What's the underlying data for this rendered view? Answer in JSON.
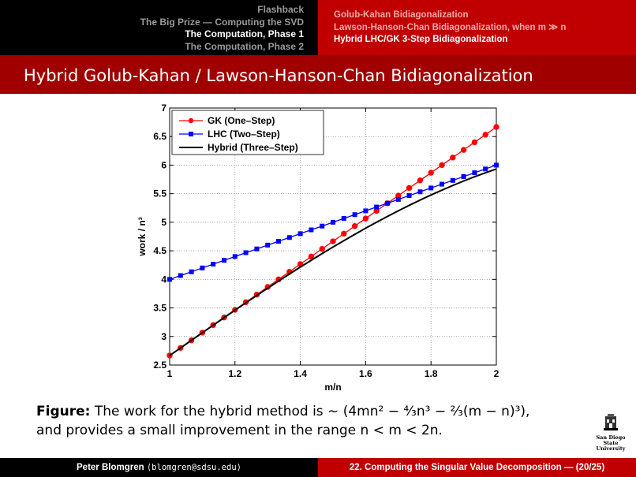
{
  "nav": {
    "sections": [
      {
        "label": "Flashback",
        "active": false
      },
      {
        "label": "The Big Prize — Computing the SVD",
        "active": false
      },
      {
        "label": "The Computation, Phase 1",
        "active": true
      },
      {
        "label": "The Computation, Phase 2",
        "active": false
      }
    ],
    "subsections": [
      {
        "label": "Golub-Kahan Bidiagonalization",
        "active": false
      },
      {
        "label": "Lawson-Hanson-Chan Bidiagonalization, when m ≫ n",
        "active": false
      },
      {
        "label": "Hybrid LHC/GK 3-Step Bidiagonalization",
        "active": true
      }
    ]
  },
  "frame_title": "Hybrid Golub-Kahan / Lawson-Hanson-Chan Bidiagonalization",
  "caption": {
    "label": "Figure:",
    "line1": "The work for the hybrid method is ∼ (4mn² − ⁴⁄₃n³ − ²⁄₃(m − n)³),",
    "line2": "and provides a small improvement in the range n < m < 2n."
  },
  "logo": {
    "line1": "San Diego State",
    "line2": "University"
  },
  "footer": {
    "author": "Peter Blomgren",
    "email": "⟨blomgren@sdsu.edu⟩",
    "slide": "22. Computing the Singular Value Decomposition — (20/25)"
  },
  "colors": {
    "gk": "#ff0000",
    "lhc": "#0000ff",
    "hybrid": "#000000",
    "title_bar": "#a00000",
    "nav_red": "#c00000"
  },
  "chart_data": {
    "type": "line",
    "xlabel": "m/n",
    "ylabel": "work / n³",
    "xlim": [
      1,
      2
    ],
    "ylim": [
      2.5,
      7
    ],
    "xticks": [
      "1",
      "1.2",
      "1.4",
      "1.6",
      "1.8",
      "2"
    ],
    "yticks": [
      "2.5",
      "3",
      "3.5",
      "4",
      "4.5",
      "5",
      "5.5",
      "6",
      "6.5",
      "7"
    ],
    "grid": true,
    "legend_position": "top-left",
    "x": [
      1.0,
      1.0333,
      1.0667,
      1.1,
      1.1333,
      1.1667,
      1.2,
      1.2333,
      1.2667,
      1.3,
      1.3333,
      1.3667,
      1.4,
      1.4333,
      1.4667,
      1.5,
      1.5333,
      1.5667,
      1.6,
      1.6333,
      1.6667,
      1.7,
      1.7333,
      1.7667,
      1.8,
      1.8333,
      1.8667,
      1.9,
      1.9333,
      1.9667,
      2.0
    ],
    "series": [
      {
        "name": "GK (One–Step)",
        "marker": "circle",
        "values": [
          2.667,
          2.8,
          2.933,
          3.067,
          3.2,
          3.333,
          3.467,
          3.6,
          3.733,
          3.867,
          4.0,
          4.133,
          4.267,
          4.4,
          4.533,
          4.667,
          4.8,
          4.933,
          5.067,
          5.2,
          5.333,
          5.467,
          5.6,
          5.733,
          5.867,
          6.0,
          6.133,
          6.267,
          6.4,
          6.533,
          6.667
        ]
      },
      {
        "name": "LHC (Two–Step)",
        "marker": "square",
        "values": [
          4.0,
          4.067,
          4.133,
          4.2,
          4.267,
          4.333,
          4.4,
          4.467,
          4.533,
          4.6,
          4.667,
          4.733,
          4.8,
          4.867,
          4.933,
          5.0,
          5.067,
          5.133,
          5.2,
          5.267,
          5.333,
          5.4,
          5.467,
          5.533,
          5.6,
          5.667,
          5.733,
          5.8,
          5.867,
          5.933,
          6.0
        ]
      },
      {
        "name": "Hybrid (Three–Step)",
        "marker": "none",
        "values": [
          2.667,
          2.8,
          2.933,
          3.066,
          3.198,
          3.33,
          3.461,
          3.59,
          3.718,
          3.845,
          3.97,
          4.094,
          4.215,
          4.334,
          4.451,
          4.566,
          4.678,
          4.788,
          4.896,
          5.0,
          5.102,
          5.2,
          5.296,
          5.388,
          5.477,
          5.562,
          5.644,
          5.722,
          5.796,
          5.866,
          5.933
        ]
      }
    ]
  }
}
